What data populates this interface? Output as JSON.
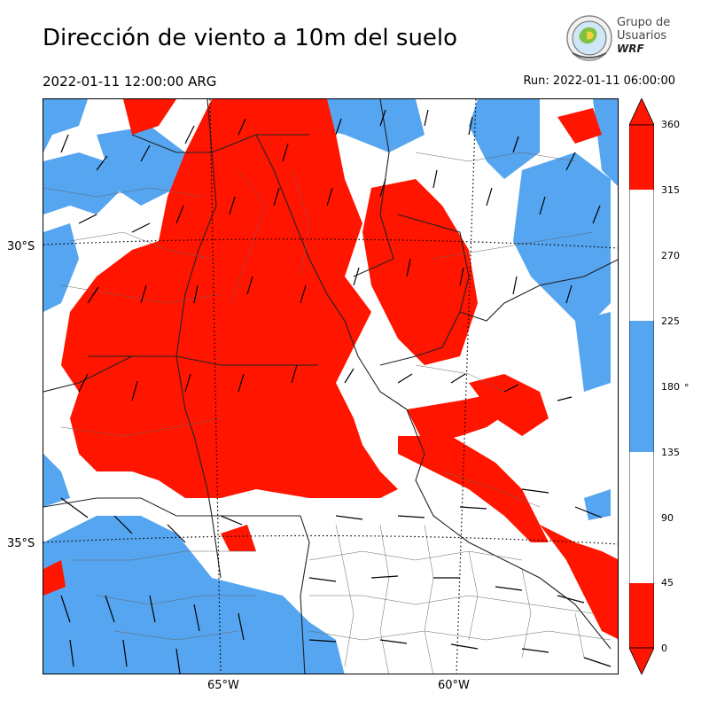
{
  "title": "Dirección de viento a 10m del suelo",
  "valid_time": "2022-01-11 12:00:00 ARG",
  "run_time": "Run: 2022-01-11 06:00:00",
  "logo": {
    "line1": "Grupo de",
    "line2": "Usuarios",
    "line3": "WRF"
  },
  "map": {
    "lat_labels": [
      "30°S",
      "35°S"
    ],
    "lon_labels": [
      "65°W",
      "60°W"
    ]
  },
  "colorbar": {
    "ticks": [
      "360",
      "315",
      "270",
      "225",
      "180",
      "135",
      "90",
      "45",
      "0"
    ],
    "unit": "°",
    "colors": {
      "red": "#ff1500",
      "blue": "#55a5f0",
      "white": "#ffffff"
    }
  }
}
